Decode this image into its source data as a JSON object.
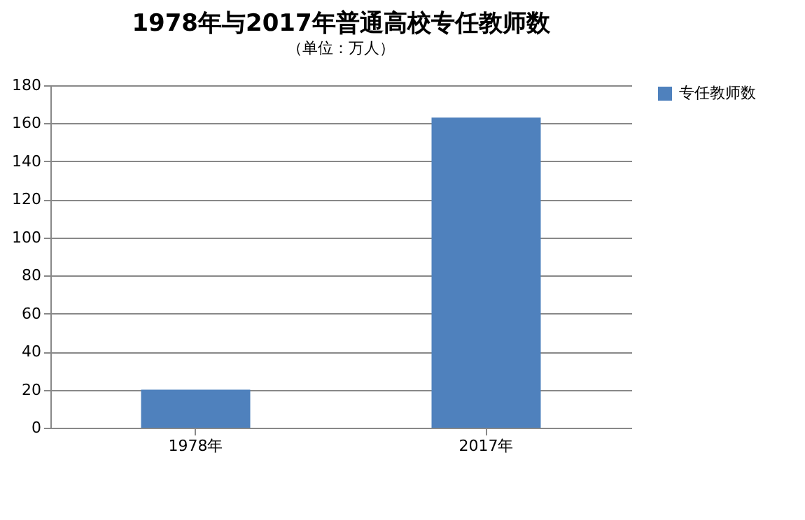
{
  "chart_data": {
    "type": "bar",
    "title": "1978年与2017年普通高校专任教师数",
    "subtitle": "（单位：万人）",
    "categories": [
      "1978年",
      "2017年"
    ],
    "series": [
      {
        "name": "专任教师数",
        "color": "#4f81bd",
        "values": [
          20,
          163
        ]
      }
    ],
    "ylim": [
      0,
      180
    ],
    "yticks": [
      0,
      20,
      40,
      60,
      80,
      100,
      120,
      140,
      160,
      180
    ],
    "grid": "y",
    "legend": "right"
  }
}
